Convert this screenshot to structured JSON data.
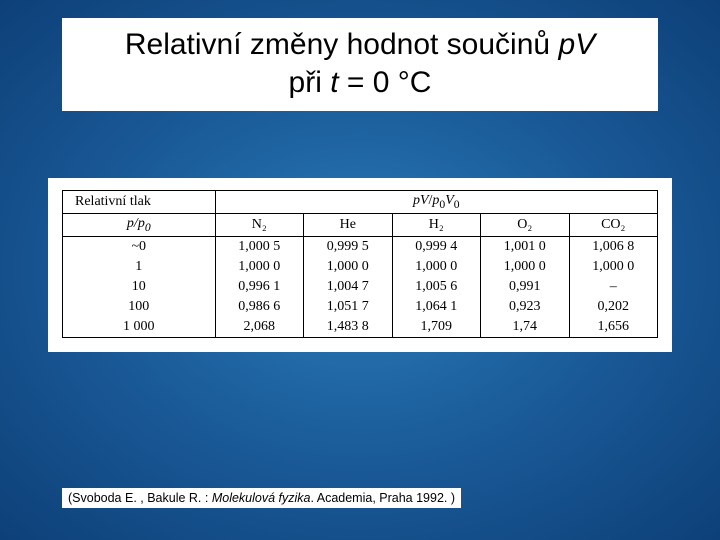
{
  "title": {
    "line1_a": "Relativní změny hodnot součinů ",
    "line1_b": "pV",
    "line2_a": "při ",
    "line2_b": "t",
    "line2_c": " = 0 °C"
  },
  "table": {
    "header_left": "Relativní tlak",
    "header_right_html": "pV/p₀V₀",
    "sub_left_html": "p/p₀",
    "gases": [
      "N₂",
      "He",
      "H₂",
      "O₂",
      "CO₂"
    ],
    "rows": [
      {
        "p": "~0",
        "vals": [
          "1,000 5",
          "0,999 5",
          "0,999 4",
          "1,001 0",
          "1,006 8"
        ]
      },
      {
        "p": "1",
        "vals": [
          "1,000 0",
          "1,000 0",
          "1,000 0",
          "1,000 0",
          "1,000 0"
        ]
      },
      {
        "p": "10",
        "vals": [
          "0,996 1",
          "1,004 7",
          "1,005 6",
          "0,991",
          "–"
        ]
      },
      {
        "p": "100",
        "vals": [
          "0,986 6",
          "1,051 7",
          "1,064 1",
          "0,923",
          "0,202"
        ]
      },
      {
        "p": "1 000",
        "vals": [
          "2,068",
          "1,483 8",
          "1,709",
          "1,74",
          "1,656"
        ]
      }
    ]
  },
  "citation": {
    "a": "(Svoboda E. , Bakule R. : ",
    "b": "Molekulová fyzika",
    "c": ". Academia, Praha 1992. )"
  },
  "style": {
    "title_fontsize": 30,
    "table_fontsize": 14,
    "citation_fontsize": 12.5,
    "bg_gradient": [
      "#2a7ab8",
      "#1a5a98",
      "#0d4078"
    ],
    "box_bg": "#ffffff",
    "border_color": "#000000"
  }
}
